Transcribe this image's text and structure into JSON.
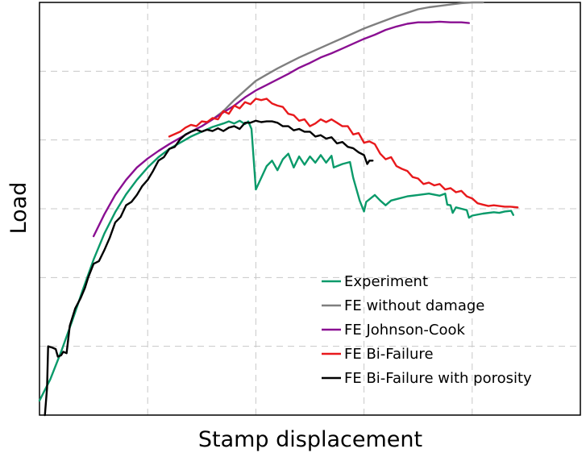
{
  "chart_data": {
    "type": "line",
    "xlabel": "Stamp displacement",
    "ylabel": "Load",
    "xlim": [
      0,
      5
    ],
    "ylim": [
      0,
      6
    ],
    "x_gridlines": [
      1,
      2,
      3,
      4
    ],
    "y_gridlines": [
      1,
      2,
      3,
      4,
      5
    ],
    "grid": true,
    "tick_labels_shown": false,
    "legend_position": "bottom-right",
    "series": [
      {
        "name": "Experiment",
        "color": "#0a9a6a",
        "points": [
          [
            0,
            0.21
          ],
          [
            0.1,
            0.52
          ],
          [
            0.2,
            0.92
          ],
          [
            0.3,
            1.36
          ],
          [
            0.4,
            1.82
          ],
          [
            0.5,
            2.26
          ],
          [
            0.6,
            2.64
          ],
          [
            0.7,
            2.95
          ],
          [
            0.8,
            3.21
          ],
          [
            0.9,
            3.42
          ],
          [
            1.0,
            3.6
          ],
          [
            1.1,
            3.75
          ],
          [
            1.2,
            3.87
          ],
          [
            1.3,
            3.96
          ],
          [
            1.4,
            4.05
          ],
          [
            1.5,
            4.12
          ],
          [
            1.6,
            4.19
          ],
          [
            1.7,
            4.24
          ],
          [
            1.75,
            4.27
          ],
          [
            1.8,
            4.24
          ],
          [
            1.85,
            4.28
          ],
          [
            1.9,
            4.23
          ],
          [
            1.93,
            4.27
          ],
          [
            1.96,
            4.16
          ],
          [
            2.0,
            3.28
          ],
          [
            2.05,
            3.45
          ],
          [
            2.1,
            3.62
          ],
          [
            2.15,
            3.7
          ],
          [
            2.2,
            3.56
          ],
          [
            2.25,
            3.72
          ],
          [
            2.3,
            3.8
          ],
          [
            2.35,
            3.6
          ],
          [
            2.4,
            3.76
          ],
          [
            2.45,
            3.64
          ],
          [
            2.5,
            3.76
          ],
          [
            2.55,
            3.67
          ],
          [
            2.6,
            3.78
          ],
          [
            2.65,
            3.67
          ],
          [
            2.7,
            3.77
          ],
          [
            2.72,
            3.6
          ],
          [
            2.8,
            3.65
          ],
          [
            2.87,
            3.68
          ],
          [
            2.9,
            3.45
          ],
          [
            2.96,
            3.12
          ],
          [
            3.0,
            2.96
          ],
          [
            3.02,
            3.1
          ],
          [
            3.1,
            3.2
          ],
          [
            3.15,
            3.12
          ],
          [
            3.2,
            3.05
          ],
          [
            3.25,
            3.12
          ],
          [
            3.3,
            3.14
          ],
          [
            3.4,
            3.18
          ],
          [
            3.5,
            3.2
          ],
          [
            3.6,
            3.22
          ],
          [
            3.7,
            3.19
          ],
          [
            3.75,
            3.22
          ],
          [
            3.77,
            3.06
          ],
          [
            3.8,
            3.05
          ],
          [
            3.82,
            2.94
          ],
          [
            3.85,
            3.02
          ],
          [
            3.9,
            3.0
          ],
          [
            3.95,
            2.98
          ],
          [
            3.97,
            2.87
          ],
          [
            4.0,
            2.9
          ],
          [
            4.1,
            2.93
          ],
          [
            4.2,
            2.95
          ],
          [
            4.25,
            2.94
          ],
          [
            4.3,
            2.96
          ],
          [
            4.36,
            2.97
          ],
          [
            4.38,
            2.91
          ]
        ]
      },
      {
        "name": "FE without damage",
        "color": "#7f7f7f",
        "points": [
          [
            1.5,
            4.2
          ],
          [
            1.6,
            4.3
          ],
          [
            1.7,
            4.42
          ],
          [
            1.8,
            4.58
          ],
          [
            1.9,
            4.72
          ],
          [
            2.0,
            4.86
          ],
          [
            2.1,
            4.95
          ],
          [
            2.2,
            5.04
          ],
          [
            2.3,
            5.12
          ],
          [
            2.4,
            5.2
          ],
          [
            2.5,
            5.27
          ],
          [
            2.6,
            5.34
          ],
          [
            2.7,
            5.41
          ],
          [
            2.8,
            5.48
          ],
          [
            2.9,
            5.55
          ],
          [
            3.0,
            5.62
          ],
          [
            3.1,
            5.68
          ],
          [
            3.2,
            5.74
          ],
          [
            3.3,
            5.8
          ],
          [
            3.4,
            5.85
          ],
          [
            3.5,
            5.9
          ],
          [
            3.6,
            5.93
          ],
          [
            3.7,
            5.95
          ],
          [
            3.8,
            5.97
          ],
          [
            3.9,
            5.99
          ],
          [
            4.0,
            6.0
          ],
          [
            4.1,
            6.02
          ]
        ]
      },
      {
        "name": "FE Johnson-Cook",
        "color": "#8a0f92",
        "points": [
          [
            0.5,
            2.6
          ],
          [
            0.6,
            2.92
          ],
          [
            0.7,
            3.2
          ],
          [
            0.8,
            3.42
          ],
          [
            0.9,
            3.6
          ],
          [
            1.0,
            3.73
          ],
          [
            1.1,
            3.84
          ],
          [
            1.2,
            3.94
          ],
          [
            1.3,
            4.03
          ],
          [
            1.4,
            4.12
          ],
          [
            1.5,
            4.2
          ],
          [
            1.6,
            4.3
          ],
          [
            1.7,
            4.4
          ],
          [
            1.8,
            4.5
          ],
          [
            1.9,
            4.62
          ],
          [
            2.0,
            4.72
          ],
          [
            2.1,
            4.8
          ],
          [
            2.2,
            4.88
          ],
          [
            2.3,
            4.96
          ],
          [
            2.4,
            5.05
          ],
          [
            2.5,
            5.12
          ],
          [
            2.6,
            5.2
          ],
          [
            2.7,
            5.26
          ],
          [
            2.8,
            5.33
          ],
          [
            2.9,
            5.4
          ],
          [
            3.0,
            5.47
          ],
          [
            3.1,
            5.53
          ],
          [
            3.2,
            5.6
          ],
          [
            3.3,
            5.65
          ],
          [
            3.4,
            5.69
          ],
          [
            3.5,
            5.71
          ],
          [
            3.6,
            5.71
          ],
          [
            3.7,
            5.72
          ],
          [
            3.8,
            5.71
          ],
          [
            3.9,
            5.71
          ],
          [
            3.97,
            5.7
          ]
        ]
      },
      {
        "name": "FE Bi-Failure",
        "color": "#e8191c",
        "points": [
          [
            1.2,
            4.05
          ],
          [
            1.3,
            4.12
          ],
          [
            1.35,
            4.18
          ],
          [
            1.4,
            4.22
          ],
          [
            1.45,
            4.2
          ],
          [
            1.5,
            4.27
          ],
          [
            1.55,
            4.26
          ],
          [
            1.6,
            4.32
          ],
          [
            1.65,
            4.3
          ],
          [
            1.7,
            4.42
          ],
          [
            1.75,
            4.38
          ],
          [
            1.8,
            4.5
          ],
          [
            1.85,
            4.46
          ],
          [
            1.9,
            4.55
          ],
          [
            1.95,
            4.52
          ],
          [
            2.0,
            4.6
          ],
          [
            2.05,
            4.58
          ],
          [
            2.1,
            4.6
          ],
          [
            2.15,
            4.53
          ],
          [
            2.2,
            4.5
          ],
          [
            2.25,
            4.48
          ],
          [
            2.3,
            4.38
          ],
          [
            2.35,
            4.36
          ],
          [
            2.4,
            4.28
          ],
          [
            2.45,
            4.3
          ],
          [
            2.5,
            4.2
          ],
          [
            2.55,
            4.24
          ],
          [
            2.6,
            4.3
          ],
          [
            2.65,
            4.26
          ],
          [
            2.7,
            4.3
          ],
          [
            2.75,
            4.25
          ],
          [
            2.8,
            4.2
          ],
          [
            2.85,
            4.2
          ],
          [
            2.9,
            4.08
          ],
          [
            2.95,
            4.1
          ],
          [
            3.0,
            3.96
          ],
          [
            3.05,
            3.98
          ],
          [
            3.1,
            3.94
          ],
          [
            3.15,
            3.8
          ],
          [
            3.2,
            3.72
          ],
          [
            3.25,
            3.75
          ],
          [
            3.3,
            3.62
          ],
          [
            3.35,
            3.58
          ],
          [
            3.4,
            3.55
          ],
          [
            3.45,
            3.46
          ],
          [
            3.5,
            3.44
          ],
          [
            3.55,
            3.36
          ],
          [
            3.6,
            3.38
          ],
          [
            3.65,
            3.34
          ],
          [
            3.7,
            3.36
          ],
          [
            3.75,
            3.28
          ],
          [
            3.8,
            3.3
          ],
          [
            3.85,
            3.24
          ],
          [
            3.9,
            3.26
          ],
          [
            3.95,
            3.18
          ],
          [
            4.0,
            3.15
          ],
          [
            4.05,
            3.08
          ],
          [
            4.1,
            3.06
          ],
          [
            4.15,
            3.04
          ],
          [
            4.2,
            3.05
          ],
          [
            4.25,
            3.04
          ],
          [
            4.3,
            3.03
          ],
          [
            4.35,
            3.03
          ],
          [
            4.42,
            3.02
          ]
        ]
      },
      {
        "name": "FE Bi-Failure with porosity",
        "color": "#000000",
        "points": [
          [
            0.05,
            -0.05
          ],
          [
            0.07,
            0.4
          ],
          [
            0.08,
            1.0
          ],
          [
            0.12,
            0.98
          ],
          [
            0.15,
            0.96
          ],
          [
            0.17,
            0.85
          ],
          [
            0.2,
            0.87
          ],
          [
            0.22,
            0.92
          ],
          [
            0.25,
            0.9
          ],
          [
            0.28,
            1.3
          ],
          [
            0.33,
            1.55
          ],
          [
            0.38,
            1.7
          ],
          [
            0.42,
            1.85
          ],
          [
            0.45,
            2.0
          ],
          [
            0.5,
            2.2
          ],
          [
            0.55,
            2.24
          ],
          [
            0.6,
            2.4
          ],
          [
            0.65,
            2.58
          ],
          [
            0.7,
            2.8
          ],
          [
            0.75,
            2.88
          ],
          [
            0.8,
            3.05
          ],
          [
            0.85,
            3.1
          ],
          [
            0.9,
            3.2
          ],
          [
            0.95,
            3.33
          ],
          [
            1.0,
            3.42
          ],
          [
            1.05,
            3.55
          ],
          [
            1.1,
            3.7
          ],
          [
            1.15,
            3.75
          ],
          [
            1.2,
            3.87
          ],
          [
            1.25,
            3.9
          ],
          [
            1.3,
            4.01
          ],
          [
            1.35,
            4.08
          ],
          [
            1.4,
            4.12
          ],
          [
            1.45,
            4.15
          ],
          [
            1.5,
            4.12
          ],
          [
            1.55,
            4.15
          ],
          [
            1.6,
            4.13
          ],
          [
            1.65,
            4.17
          ],
          [
            1.7,
            4.13
          ],
          [
            1.75,
            4.18
          ],
          [
            1.8,
            4.2
          ],
          [
            1.85,
            4.16
          ],
          [
            1.9,
            4.25
          ],
          [
            1.95,
            4.25
          ],
          [
            2.0,
            4.28
          ],
          [
            2.05,
            4.26
          ],
          [
            2.1,
            4.27
          ],
          [
            2.15,
            4.27
          ],
          [
            2.2,
            4.25
          ],
          [
            2.25,
            4.2
          ],
          [
            2.3,
            4.2
          ],
          [
            2.35,
            4.14
          ],
          [
            2.4,
            4.16
          ],
          [
            2.45,
            4.12
          ],
          [
            2.5,
            4.12
          ],
          [
            2.55,
            4.05
          ],
          [
            2.6,
            4.07
          ],
          [
            2.65,
            4.02
          ],
          [
            2.7,
            4.04
          ],
          [
            2.75,
            3.95
          ],
          [
            2.8,
            3.97
          ],
          [
            2.85,
            3.9
          ],
          [
            2.9,
            3.88
          ],
          [
            2.95,
            3.82
          ],
          [
            3.0,
            3.78
          ],
          [
            3.03,
            3.65
          ],
          [
            3.05,
            3.7
          ],
          [
            3.08,
            3.7
          ]
        ]
      }
    ]
  }
}
